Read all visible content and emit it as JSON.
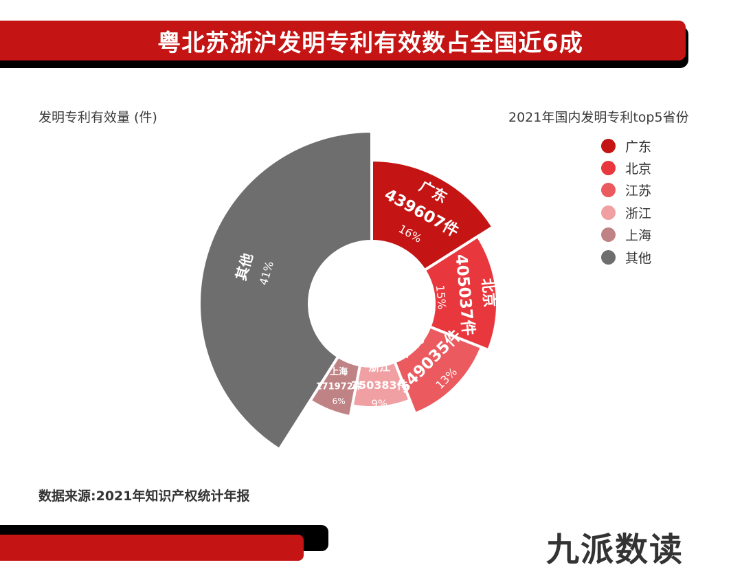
{
  "title": "粤北苏浙沪发明专利有效数占全国近6成",
  "unit_label": "发明专利有效量 (件)",
  "legend_title": "2021年国内发明专利top5省份",
  "source": "数据来源:2021年知识产权统计年报",
  "brand": "九派数读",
  "colors": {
    "title_bar": "#c41414",
    "guangdong": "#c41414",
    "beijing": "#e8383e",
    "jiangsu": "#ea5a5e",
    "zhejiang": "#f0a0a3",
    "shanghai": "#c08385",
    "others": "#6e6e6e"
  },
  "chart_data": {
    "type": "pie",
    "donut": true,
    "title": "粤北苏浙沪发明专利有效数占全国近6成",
    "legend_position": "top-right",
    "slices": [
      {
        "label": "广东",
        "value": 439607,
        "value_text": "439607件",
        "percent": 16,
        "percent_text": "16%",
        "color": "#c41414"
      },
      {
        "label": "北京",
        "value": 405037,
        "value_text": "405037件",
        "percent": 15,
        "percent_text": "15%",
        "color": "#e8383e"
      },
      {
        "label": "江苏",
        "value": 349035,
        "value_text": "349035件",
        "percent": 13,
        "percent_text": "13%",
        "color": "#ea5a5e"
      },
      {
        "label": "浙江",
        "value": 250383,
        "value_text": "250383件",
        "percent": 9,
        "percent_text": "9%",
        "color": "#f0a0a3"
      },
      {
        "label": "上海",
        "value": 171972,
        "value_text": "171972件",
        "percent": 6,
        "percent_text": "6%",
        "color": "#c08385"
      },
      {
        "label": "其他",
        "percent": 41,
        "percent_text": "41%",
        "color": "#6e6e6e"
      }
    ]
  }
}
